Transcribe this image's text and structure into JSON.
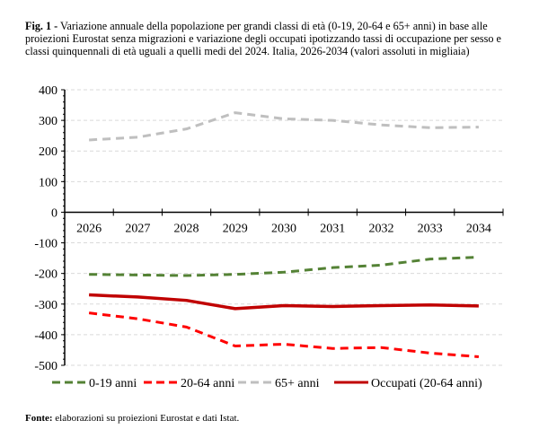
{
  "caption": {
    "label": "Fig. 1 -",
    "text": " Variazione annuale della popolazione per grandi classi di età (0-19, 20-64 e 65+ anni) in base alle proiezioni Eurostat senza migrazioni e variazione degli occupati ipotizzando tassi di occupazione per sesso e classi quinquennali di età uguali a quelli medi del 2024. Italia, 2026-2034 (valori assoluti in migliaia)"
  },
  "source": {
    "label": "Fonte:",
    "text": " elaborazioni su proiezioni Eurostat e dati Istat."
  },
  "chart_data": {
    "type": "line",
    "categories": [
      "2026",
      "2027",
      "2028",
      "2029",
      "2030",
      "2031",
      "2032",
      "2033",
      "2034"
    ],
    "ylim": [
      -500,
      400
    ],
    "yticks": [
      400,
      300,
      200,
      100,
      0,
      -100,
      -200,
      -300,
      -400,
      -500
    ],
    "grid": true,
    "legend": "bottom",
    "series": [
      {
        "name": "0-19 anni",
        "color": "#548235",
        "dash": true,
        "values": [
          -203,
          -205,
          -207,
          -203,
          -196,
          -181,
          -173,
          -153,
          -147
        ]
      },
      {
        "name": "20-64 anni",
        "color": "#ff0000",
        "dash": true,
        "values": [
          -329,
          -348,
          -375,
          -437,
          -431,
          -445,
          -442,
          -460,
          -472
        ]
      },
      {
        "name": "65+ anni",
        "color": "#bfbfbf",
        "dash": true,
        "values": [
          236,
          245,
          272,
          325,
          305,
          300,
          285,
          276,
          278
        ]
      },
      {
        "name": "Occupati (20-64 anni)",
        "color": "#c00000",
        "dash": false,
        "values": [
          -270,
          -277,
          -288,
          -315,
          -305,
          -308,
          -305,
          -303,
          -306
        ]
      }
    ]
  }
}
